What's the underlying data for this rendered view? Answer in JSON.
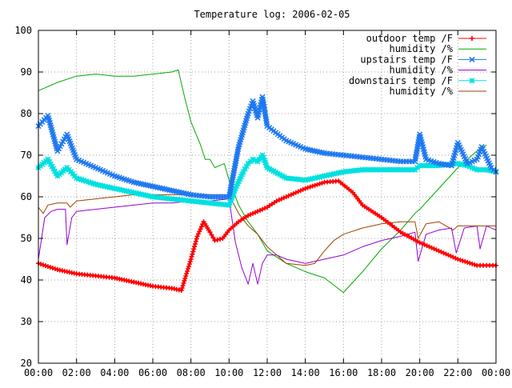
{
  "chart_data": {
    "type": "line",
    "title": "Temperature log: 2006-02-05",
    "xlabel": "",
    "ylabel": "",
    "xlim": [
      "00:00",
      "24:00"
    ],
    "ylim": [
      20,
      100
    ],
    "grid": true,
    "legend_position": "top-right",
    "x_tick_labels": [
      "00:00",
      "02:00",
      "04:00",
      "06:00",
      "08:00",
      "10:00",
      "12:00",
      "14:00",
      "16:00",
      "18:00",
      "20:00",
      "22:00",
      "00:00"
    ],
    "y_tick_labels": [
      "20",
      "30",
      "40",
      "50",
      "60",
      "70",
      "80",
      "90",
      "100"
    ],
    "series": [
      {
        "name": "outdoor temp /F",
        "color": "#ff0000",
        "marker": "plus",
        "points": [
          [
            "00:00",
            44
          ],
          [
            "01:00",
            42.5
          ],
          [
            "02:00",
            41.5
          ],
          [
            "03:00",
            41
          ],
          [
            "04:00",
            40.5
          ],
          [
            "05:00",
            39.5
          ],
          [
            "06:00",
            38.5
          ],
          [
            "07:00",
            38
          ],
          [
            "07:30",
            37.5
          ],
          [
            "08:00",
            45
          ],
          [
            "08:20",
            50.5
          ],
          [
            "08:40",
            54
          ],
          [
            "09:00",
            51.5
          ],
          [
            "09:15",
            49.5
          ],
          [
            "09:40",
            50
          ],
          [
            "10:00",
            52
          ],
          [
            "10:30",
            54
          ],
          [
            "11:00",
            55.5
          ],
          [
            "12:00",
            57.5
          ],
          [
            "12:30",
            59
          ],
          [
            "13:00",
            60
          ],
          [
            "14:00",
            62
          ],
          [
            "15:00",
            63.5
          ],
          [
            "15:45",
            63.8
          ],
          [
            "16:30",
            61
          ],
          [
            "17:00",
            58
          ],
          [
            "18:00",
            55
          ],
          [
            "19:00",
            51.5
          ],
          [
            "20:00",
            49
          ],
          [
            "21:00",
            47
          ],
          [
            "22:00",
            45
          ],
          [
            "23:00",
            43.5
          ],
          [
            "23:30",
            43.5
          ],
          [
            "24:00",
            43.5
          ]
        ]
      },
      {
        "name": "humidity /%",
        "color": "#00aa00",
        "marker": "line",
        "points": [
          [
            "00:00",
            85.5
          ],
          [
            "01:00",
            87.5
          ],
          [
            "02:00",
            89
          ],
          [
            "03:00",
            89.5
          ],
          [
            "04:00",
            89
          ],
          [
            "05:00",
            89
          ],
          [
            "06:00",
            89.5
          ],
          [
            "07:00",
            90
          ],
          [
            "07:20",
            90.5
          ],
          [
            "07:40",
            84
          ],
          [
            "08:00",
            78
          ],
          [
            "08:30",
            72.5
          ],
          [
            "08:45",
            69
          ],
          [
            "09:00",
            69
          ],
          [
            "09:15",
            67
          ],
          [
            "09:45",
            68
          ],
          [
            "10:00",
            64
          ],
          [
            "10:30",
            58
          ],
          [
            "11:00",
            54
          ],
          [
            "11:30",
            51
          ],
          [
            "12:00",
            47
          ],
          [
            "13:00",
            44
          ],
          [
            "14:00",
            42
          ],
          [
            "15:00",
            40.5
          ],
          [
            "16:00",
            37
          ],
          [
            "17:00",
            42
          ],
          [
            "18:00",
            47.5
          ],
          [
            "19:00",
            52
          ],
          [
            "19:45",
            56
          ],
          [
            "20:00",
            57
          ],
          [
            "20:30",
            59.5
          ],
          [
            "21:00",
            62
          ],
          [
            "22:00",
            67
          ],
          [
            "23:00",
            71
          ],
          [
            "23:30",
            72.5
          ]
        ]
      },
      {
        "name": "upstairs temp /F",
        "color": "#1e78f0",
        "marker": "cross",
        "points": [
          [
            "00:00",
            77
          ],
          [
            "00:30",
            79.5
          ],
          [
            "01:00",
            71
          ],
          [
            "01:30",
            75
          ],
          [
            "02:00",
            69
          ],
          [
            "03:00",
            67
          ],
          [
            "04:00",
            65
          ],
          [
            "05:00",
            63.5
          ],
          [
            "06:00",
            62.5
          ],
          [
            "07:00",
            61.5
          ],
          [
            "08:00",
            60.5
          ],
          [
            "09:00",
            60
          ],
          [
            "10:00",
            60
          ],
          [
            "10:30",
            72
          ],
          [
            "11:00",
            80
          ],
          [
            "11:15",
            83
          ],
          [
            "11:30",
            79
          ],
          [
            "11:45",
            84
          ],
          [
            "12:00",
            77
          ],
          [
            "13:00",
            73.5
          ],
          [
            "14:00",
            71.5
          ],
          [
            "15:00",
            70.5
          ],
          [
            "16:00",
            70
          ],
          [
            "17:00",
            69.5
          ],
          [
            "18:00",
            69
          ],
          [
            "19:00",
            68.5
          ],
          [
            "19:45",
            68.5
          ],
          [
            "20:00",
            75
          ],
          [
            "20:20",
            69
          ],
          [
            "21:00",
            68
          ],
          [
            "21:40",
            67.5
          ],
          [
            "22:00",
            73
          ],
          [
            "22:30",
            68
          ],
          [
            "23:00",
            69
          ],
          [
            "23:15",
            72
          ],
          [
            "23:45",
            67
          ],
          [
            "24:00",
            66
          ]
        ]
      },
      {
        "name": "humidity /%",
        "color": "#9400d3",
        "marker": "line",
        "points": [
          [
            "00:00",
            45
          ],
          [
            "00:20",
            55
          ],
          [
            "00:40",
            56.5
          ],
          [
            "01:00",
            57
          ],
          [
            "01:25",
            57
          ],
          [
            "01:30",
            48.5
          ],
          [
            "01:45",
            55
          ],
          [
            "02:00",
            56.5
          ],
          [
            "03:00",
            57
          ],
          [
            "04:00",
            57.5
          ],
          [
            "05:00",
            58
          ],
          [
            "06:00",
            58.5
          ],
          [
            "07:00",
            58.5
          ],
          [
            "08:00",
            59
          ],
          [
            "09:00",
            59
          ],
          [
            "10:00",
            59.5
          ],
          [
            "10:20",
            49
          ],
          [
            "10:40",
            43
          ],
          [
            "11:00",
            39
          ],
          [
            "11:15",
            44
          ],
          [
            "11:30",
            39
          ],
          [
            "11:45",
            44
          ],
          [
            "12:00",
            46
          ],
          [
            "12:30",
            46
          ],
          [
            "13:00",
            45
          ],
          [
            "14:00",
            44
          ],
          [
            "15:00",
            45
          ],
          [
            "16:00",
            46
          ],
          [
            "17:00",
            48
          ],
          [
            "18:00",
            49.5
          ],
          [
            "19:00",
            50.5
          ],
          [
            "19:45",
            51.5
          ],
          [
            "19:55",
            44.5
          ],
          [
            "20:20",
            51
          ],
          [
            "21:00",
            52
          ],
          [
            "21:40",
            52.5
          ],
          [
            "21:55",
            46.5
          ],
          [
            "22:20",
            52.5
          ],
          [
            "23:00",
            53
          ],
          [
            "23:10",
            47.5
          ],
          [
            "23:30",
            53
          ],
          [
            "24:00",
            52
          ]
        ]
      },
      {
        "name": "downstairs temp /F",
        "color": "#00e0e0",
        "marker": "star",
        "points": [
          [
            "00:00",
            67
          ],
          [
            "00:30",
            69
          ],
          [
            "01:00",
            65
          ],
          [
            "01:30",
            67
          ],
          [
            "02:00",
            64.5
          ],
          [
            "03:00",
            63
          ],
          [
            "04:00",
            62
          ],
          [
            "05:00",
            61
          ],
          [
            "06:00",
            60
          ],
          [
            "07:00",
            59.5
          ],
          [
            "08:00",
            59
          ],
          [
            "09:00",
            58.5
          ],
          [
            "10:00",
            58
          ],
          [
            "10:20",
            62
          ],
          [
            "10:45",
            66
          ],
          [
            "11:00",
            68
          ],
          [
            "11:15",
            69
          ],
          [
            "11:30",
            68.5
          ],
          [
            "11:45",
            70
          ],
          [
            "12:00",
            67
          ],
          [
            "13:00",
            64.5
          ],
          [
            "14:00",
            64
          ],
          [
            "15:00",
            65
          ],
          [
            "16:00",
            66
          ],
          [
            "17:00",
            66.5
          ],
          [
            "18:00",
            66.5
          ],
          [
            "19:00",
            66.5
          ],
          [
            "19:45",
            66.5
          ],
          [
            "20:00",
            67.5
          ],
          [
            "21:00",
            67.5
          ],
          [
            "22:00",
            68
          ],
          [
            "22:30",
            67.5
          ],
          [
            "23:00",
            66.5
          ],
          [
            "23:30",
            66.5
          ],
          [
            "24:00",
            66
          ]
        ]
      },
      {
        "name": "humidity /%",
        "color": "#a04000",
        "marker": "line",
        "points": [
          [
            "00:00",
            57.5
          ],
          [
            "00:15",
            56
          ],
          [
            "00:30",
            58
          ],
          [
            "01:00",
            58.5
          ],
          [
            "01:30",
            58.5
          ],
          [
            "01:40",
            57.5
          ],
          [
            "02:00",
            59
          ],
          [
            "03:00",
            59.5
          ],
          [
            "04:00",
            60
          ],
          [
            "05:00",
            60.5
          ],
          [
            "06:00",
            60.5
          ],
          [
            "07:00",
            60.5
          ],
          [
            "08:00",
            60.5
          ],
          [
            "09:00",
            60.5
          ],
          [
            "10:00",
            60.5
          ],
          [
            "10:30",
            56
          ],
          [
            "11:00",
            53
          ],
          [
            "11:30",
            51
          ],
          [
            "12:00",
            48
          ],
          [
            "12:30",
            46
          ],
          [
            "13:00",
            44
          ],
          [
            "14:00",
            43.5
          ],
          [
            "14:30",
            44
          ],
          [
            "15:00",
            47
          ],
          [
            "15:30",
            49.5
          ],
          [
            "16:00",
            51
          ],
          [
            "17:00",
            52.5
          ],
          [
            "18:00",
            53.5
          ],
          [
            "19:00",
            54
          ],
          [
            "19:45",
            54
          ],
          [
            "19:55",
            50
          ],
          [
            "20:20",
            53.5
          ],
          [
            "21:00",
            54
          ],
          [
            "21:45",
            52
          ],
          [
            "22:00",
            53
          ],
          [
            "23:00",
            53
          ],
          [
            "24:00",
            53
          ]
        ]
      }
    ]
  }
}
